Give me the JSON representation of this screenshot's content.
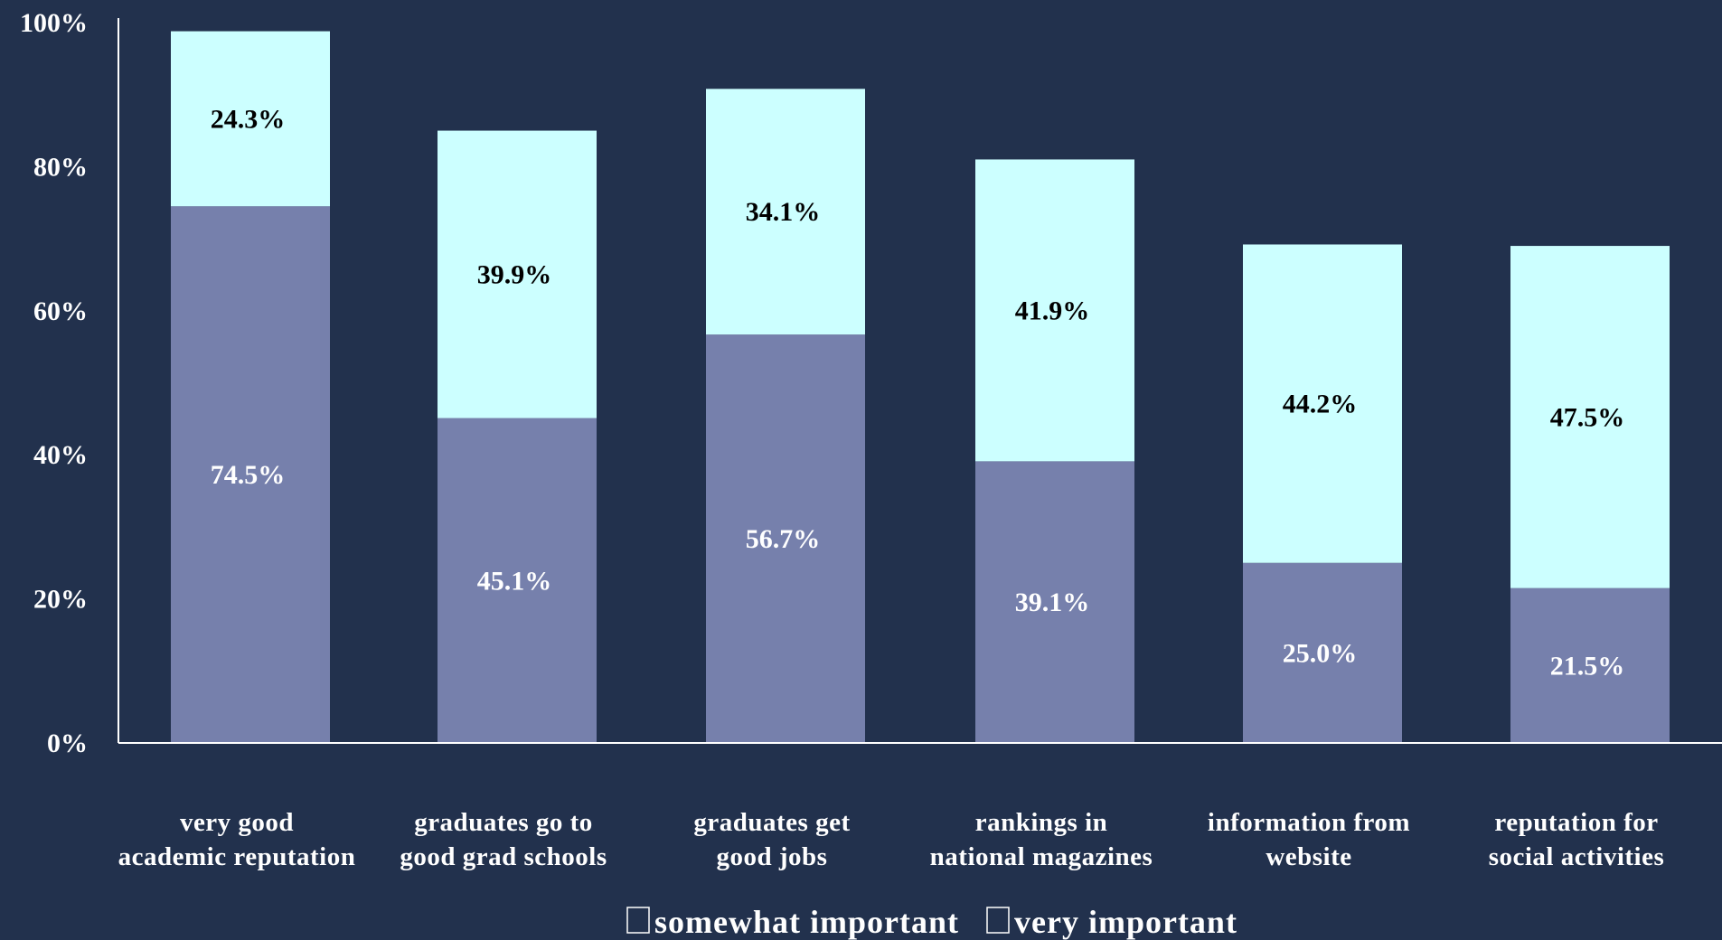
{
  "chart_data": {
    "type": "bar",
    "stacked": true,
    "categories": [
      [
        "very good",
        "academic reputation"
      ],
      [
        "graduates go to",
        "good grad schools"
      ],
      [
        "graduates get",
        "good jobs"
      ],
      [
        "rankings in",
        "national magazines"
      ],
      [
        "information from",
        "website"
      ],
      [
        "reputation for",
        "social activities"
      ]
    ],
    "series": [
      {
        "name": "very important",
        "values": [
          74.5,
          45.1,
          56.7,
          39.1,
          25.0,
          21.5
        ],
        "labels": [
          "74.5%",
          "45.1%",
          "56.7%",
          "39.1%",
          "25.0%",
          "21.5%"
        ],
        "color": "#7680ac",
        "label_color": "#ffffff"
      },
      {
        "name": "somewhat important",
        "values": [
          24.3,
          39.9,
          34.1,
          41.9,
          44.2,
          47.5
        ],
        "labels": [
          "24.3%",
          "39.9%",
          "34.1%",
          "41.9%",
          "44.2%",
          "47.5%"
        ],
        "color": "#ccffff",
        "label_color": "#000000"
      }
    ],
    "y_ticks": [
      "0%",
      "20%",
      "40%",
      "60%",
      "80%",
      "100%"
    ],
    "ylim": [
      0,
      100
    ],
    "legend": {
      "placement": "bottom",
      "order": [
        "somewhat important",
        "very important"
      ]
    },
    "grid": false,
    "background": "#22314d",
    "axis_color": "#ffffff"
  }
}
